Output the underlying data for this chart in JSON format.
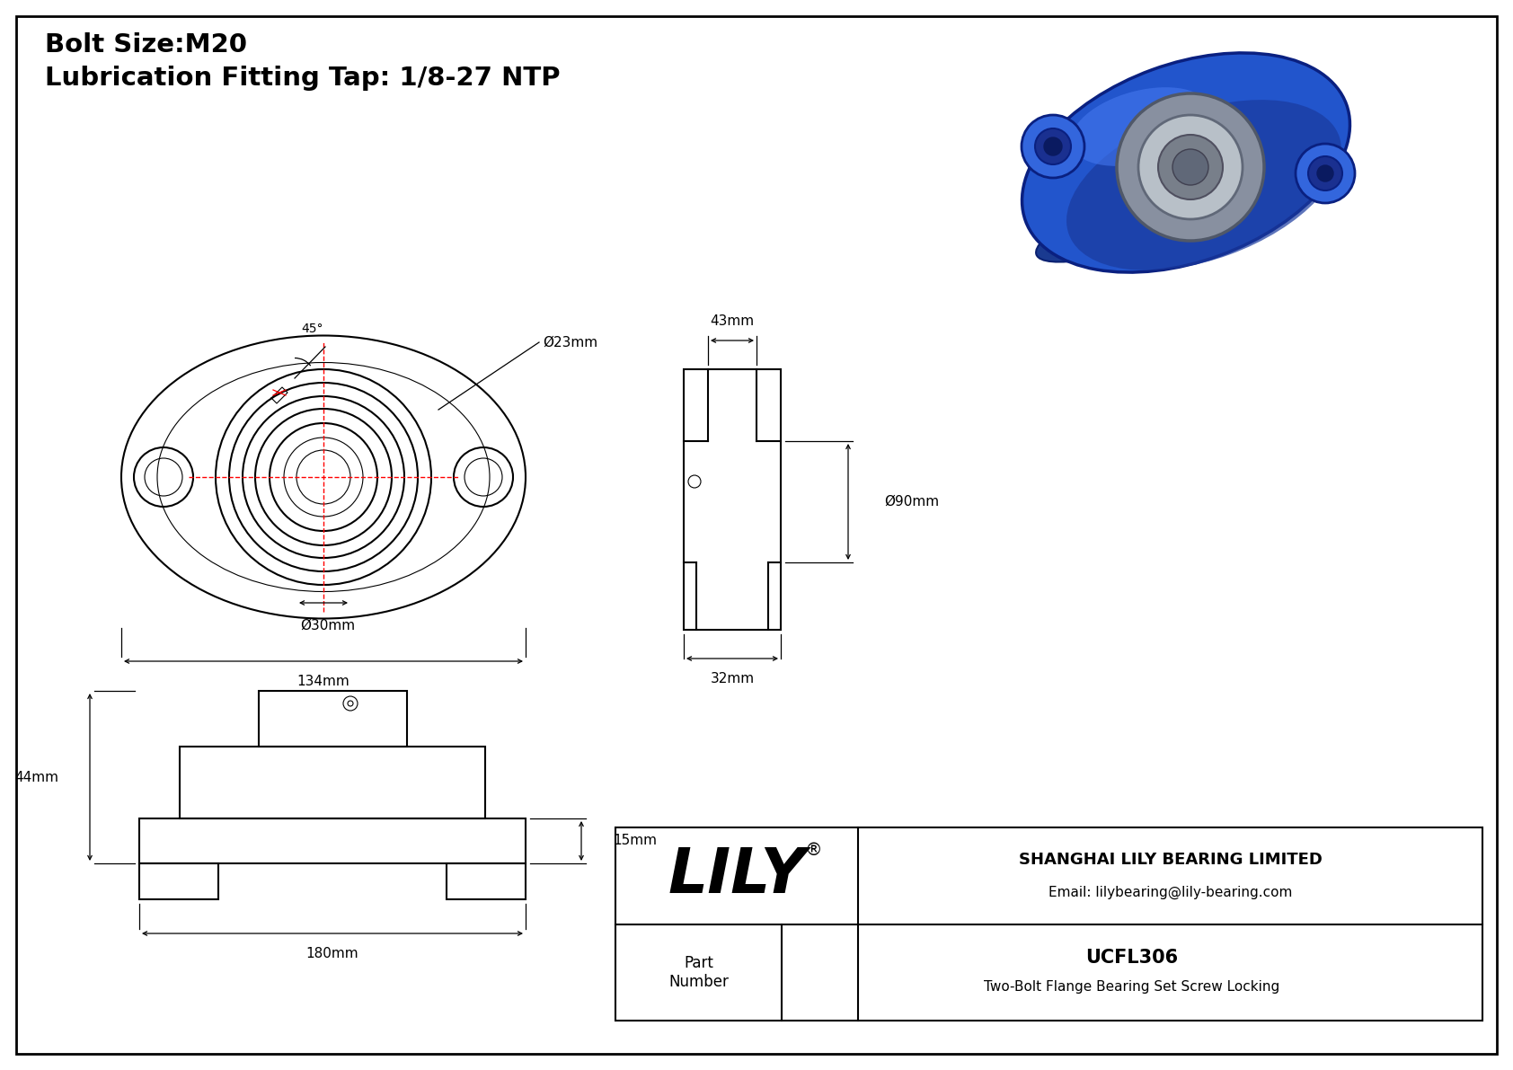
{
  "title_line1": "Bolt Size:M20",
  "title_line2": "Lubrication Fitting Tap: 1/8-27 NTP",
  "bg_color": "#ffffff",
  "line_color": "#000000",
  "red_color": "#ff0000",
  "part_number": "UCFL306",
  "part_desc": "Two-Bolt Flange Bearing Set Screw Locking",
  "company": "SHANGHAI LILY BEARING LIMITED",
  "email": "Email: lilybearing@lily-bearing.com",
  "lily_text": "LILY",
  "registered": "®",
  "dims": {
    "d23": "Ø23mm",
    "d30": "Ø30mm",
    "d90": "Ø90mm",
    "w134": "134mm",
    "w43": "43mm",
    "w32": "32mm",
    "h44": "44mm",
    "w180": "180mm",
    "h15": "15mm",
    "angle45": "45°"
  }
}
